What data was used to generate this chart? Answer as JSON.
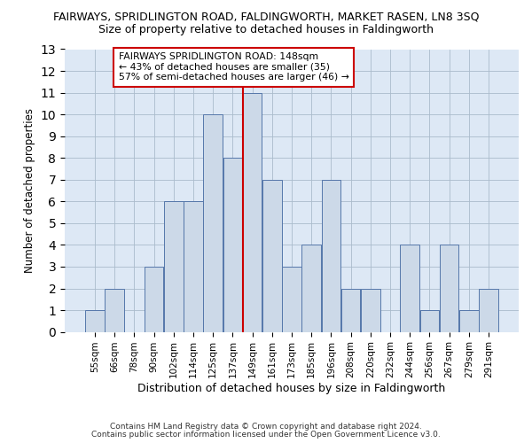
{
  "title": "FAIRWAYS, SPRIDLINGTON ROAD, FALDINGWORTH, MARKET RASEN, LN8 3SQ",
  "subtitle": "Size of property relative to detached houses in Faldingworth",
  "xlabel": "Distribution of detached houses by size in Faldingworth",
  "ylabel": "Number of detached properties",
  "footer1": "Contains HM Land Registry data © Crown copyright and database right 2024.",
  "footer2": "Contains public sector information licensed under the Open Government Licence v3.0.",
  "annotation_line1": "FAIRWAYS SPRIDLINGTON ROAD: 148sqm",
  "annotation_line2": "← 43% of detached houses are smaller (35)",
  "annotation_line3": "57% of semi-detached houses are larger (46) →",
  "bar_labels": [
    "55sqm",
    "66sqm",
    "78sqm",
    "90sqm",
    "102sqm",
    "114sqm",
    "125sqm",
    "137sqm",
    "149sqm",
    "161sqm",
    "173sqm",
    "185sqm",
    "196sqm",
    "208sqm",
    "220sqm",
    "232sqm",
    "244sqm",
    "256sqm",
    "267sqm",
    "279sqm",
    "291sqm"
  ],
  "bar_values": [
    1,
    2,
    0,
    3,
    6,
    6,
    10,
    8,
    11,
    7,
    3,
    4,
    7,
    2,
    2,
    0,
    4,
    1,
    4,
    1,
    2
  ],
  "bar_color": "#ccd9e8",
  "bar_edge_color": "#5577aa",
  "highlight_index": 8,
  "highlight_line_color": "#cc0000",
  "ylim": [
    0,
    13
  ],
  "yticks": [
    0,
    1,
    2,
    3,
    4,
    5,
    6,
    7,
    8,
    9,
    10,
    11,
    12,
    13
  ],
  "grid_color": "#aabbcc",
  "annotation_box_edge": "#cc0000",
  "bg_color": "#dde8f5"
}
